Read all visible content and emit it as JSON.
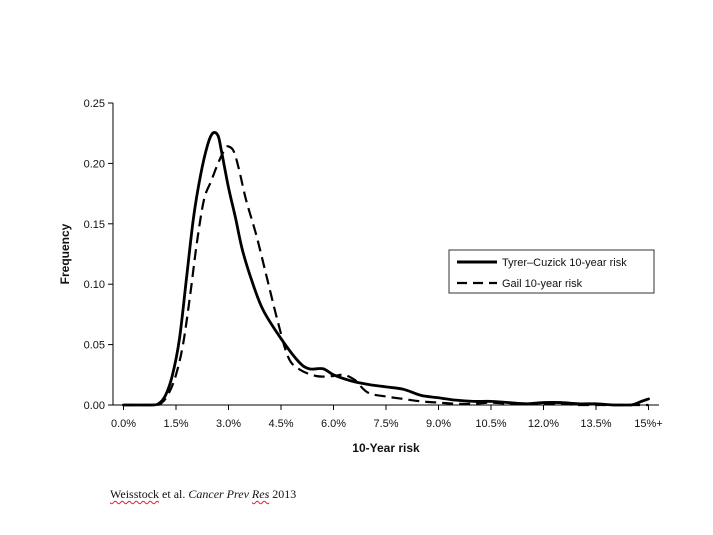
{
  "chart_data": {
    "type": "line",
    "title": "",
    "xlabel": "10-Year risk",
    "ylabel": "Frequency",
    "x_tick_labels": [
      "0.0%",
      "1.5%",
      "3.0%",
      "4.5%",
      "6.0%",
      "7.5%",
      "9.0%",
      "10.5%",
      "12.0%",
      "13.5%",
      "15%+"
    ],
    "x_tick_values": [
      0,
      1.5,
      3.0,
      4.5,
      6.0,
      7.5,
      9.0,
      10.5,
      12.0,
      13.5,
      15.0
    ],
    "y_tick_labels": [
      "0.00",
      "0.05",
      "0.10",
      "0.15",
      "0.20",
      "0.25"
    ],
    "y_tick_values": [
      0,
      0.05,
      0.1,
      0.15,
      0.2,
      0.25
    ],
    "xlim": [
      -0.3,
      15.3
    ],
    "ylim": [
      0,
      0.25
    ],
    "grid": false,
    "legend_position": "right",
    "series": [
      {
        "name": "Tyrer–Cuzick 10-year risk",
        "style": "solid",
        "color": "#000000",
        "points": [
          [
            0.0,
            0.0
          ],
          [
            0.8,
            0.0
          ],
          [
            1.0,
            0.001
          ],
          [
            1.2,
            0.008
          ],
          [
            1.4,
            0.025
          ],
          [
            1.6,
            0.055
          ],
          [
            1.8,
            0.105
          ],
          [
            2.0,
            0.155
          ],
          [
            2.2,
            0.19
          ],
          [
            2.4,
            0.215
          ],
          [
            2.55,
            0.225
          ],
          [
            2.7,
            0.223
          ],
          [
            2.8,
            0.21
          ],
          [
            3.0,
            0.18
          ],
          [
            3.2,
            0.155
          ],
          [
            3.4,
            0.128
          ],
          [
            3.7,
            0.1
          ],
          [
            4.0,
            0.078
          ],
          [
            4.5,
            0.055
          ],
          [
            5.0,
            0.036
          ],
          [
            5.3,
            0.03
          ],
          [
            5.7,
            0.03
          ],
          [
            6.0,
            0.025
          ],
          [
            6.5,
            0.02
          ],
          [
            7.0,
            0.017
          ],
          [
            7.5,
            0.015
          ],
          [
            8.0,
            0.013
          ],
          [
            8.5,
            0.008
          ],
          [
            9.0,
            0.006
          ],
          [
            9.5,
            0.004
          ],
          [
            10.0,
            0.003
          ],
          [
            10.5,
            0.003
          ],
          [
            11.0,
            0.002
          ],
          [
            11.5,
            0.001
          ],
          [
            12.0,
            0.002
          ],
          [
            12.5,
            0.002
          ],
          [
            13.0,
            0.001
          ],
          [
            13.5,
            0.001
          ],
          [
            14.0,
            0.0
          ],
          [
            14.5,
            0.0
          ],
          [
            14.8,
            0.003
          ],
          [
            15.0,
            0.005
          ]
        ]
      },
      {
        "name": "Gail 10-year risk",
        "style": "dashed",
        "color": "#000000",
        "points": [
          [
            0.0,
            0.0
          ],
          [
            0.9,
            0.0
          ],
          [
            1.1,
            0.002
          ],
          [
            1.3,
            0.01
          ],
          [
            1.5,
            0.025
          ],
          [
            1.7,
            0.05
          ],
          [
            1.9,
            0.09
          ],
          [
            2.1,
            0.135
          ],
          [
            2.3,
            0.17
          ],
          [
            2.5,
            0.185
          ],
          [
            2.7,
            0.2
          ],
          [
            2.9,
            0.212
          ],
          [
            3.0,
            0.214
          ],
          [
            3.15,
            0.21
          ],
          [
            3.3,
            0.195
          ],
          [
            3.5,
            0.17
          ],
          [
            3.8,
            0.14
          ],
          [
            4.1,
            0.105
          ],
          [
            4.4,
            0.07
          ],
          [
            4.7,
            0.04
          ],
          [
            5.0,
            0.03
          ],
          [
            5.5,
            0.024
          ],
          [
            6.0,
            0.024
          ],
          [
            6.3,
            0.025
          ],
          [
            6.6,
            0.021
          ],
          [
            6.7,
            0.018
          ],
          [
            7.0,
            0.01
          ],
          [
            7.5,
            0.007
          ],
          [
            8.0,
            0.005
          ],
          [
            8.5,
            0.003
          ],
          [
            9.0,
            0.002
          ],
          [
            9.5,
            0.001
          ],
          [
            10.0,
            0.001
          ],
          [
            10.5,
            0.002
          ],
          [
            11.0,
            0.001
          ],
          [
            11.5,
            0.001
          ],
          [
            12.0,
            0.001
          ],
          [
            12.5,
            0.001
          ],
          [
            13.0,
            0.0
          ],
          [
            13.5,
            0.0
          ],
          [
            14.0,
            0.0
          ],
          [
            14.5,
            0.0
          ],
          [
            15.0,
            0.0
          ]
        ]
      }
    ]
  },
  "citation": {
    "authors": "Weisstock",
    "middle": " et al. ",
    "journal": "Cancer Prev ",
    "journal_short": "Res",
    "year": " 2013"
  }
}
